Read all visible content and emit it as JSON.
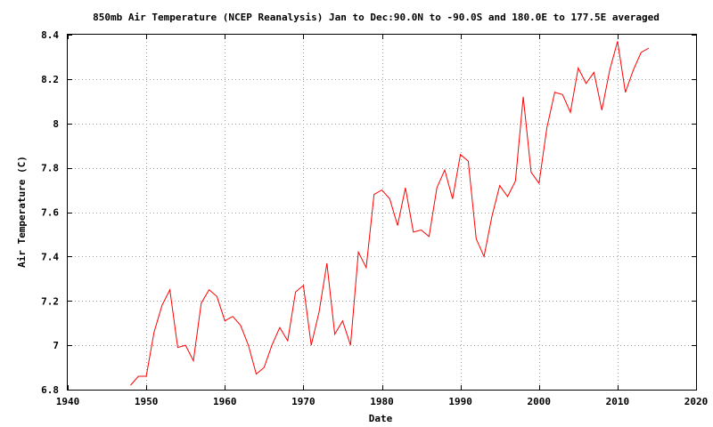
{
  "chart_data": {
    "type": "line",
    "title": "850mb Air Temperature (NCEP Reanalysis) Jan to Dec:90.0N to -90.0S and 180.0E to 177.5E averaged",
    "xlabel": "Date",
    "ylabel": "Air Temperature (C)",
    "xlim": [
      1940,
      2020
    ],
    "ylim": [
      6.8,
      8.4
    ],
    "xticks": [
      1940,
      1950,
      1960,
      1970,
      1980,
      1990,
      2000,
      2010,
      2020
    ],
    "yticks": [
      6.8,
      7,
      7.2,
      7.4,
      7.6,
      7.8,
      8,
      8.2,
      8.4
    ],
    "xtick_labels": [
      "1940",
      "1950",
      "1960",
      "1970",
      "1980",
      "1990",
      "2000",
      "2010",
      "2020"
    ],
    "ytick_labels": [
      "6.8",
      "7",
      "7.2",
      "7.4",
      "7.6",
      "7.8",
      "8",
      "8.2",
      "8.4"
    ],
    "grid": true,
    "color": "#ff0000",
    "series": [
      {
        "x": [
          1948,
          1949,
          1950,
          1951,
          1952,
          1953,
          1954,
          1955,
          1956,
          1957,
          1958,
          1959,
          1960,
          1961,
          1962,
          1963,
          1964,
          1965,
          1966,
          1967,
          1968,
          1969,
          1970,
          1971,
          1972,
          1973,
          1974,
          1975,
          1976,
          1977,
          1978,
          1979,
          1980,
          1981,
          1982,
          1983,
          1984,
          1985,
          1986,
          1987,
          1988,
          1989,
          1990,
          1991,
          1992,
          1993,
          1994,
          1995,
          1996,
          1997,
          1998,
          1999,
          2000,
          2001,
          2002,
          2003,
          2004,
          2005,
          2006,
          2007,
          2008,
          2009,
          2010,
          2011,
          2012,
          2013,
          2014
        ],
        "values": [
          6.82,
          6.86,
          6.86,
          7.06,
          7.18,
          7.25,
          6.99,
          7.0,
          6.93,
          7.19,
          7.25,
          7.22,
          7.11,
          7.13,
          7.09,
          7.0,
          6.87,
          6.9,
          7.0,
          7.08,
          7.02,
          7.24,
          7.27,
          7.0,
          7.15,
          7.37,
          7.05,
          7.11,
          7.0,
          7.42,
          7.35,
          7.68,
          7.7,
          7.66,
          7.54,
          7.71,
          7.51,
          7.52,
          7.49,
          7.71,
          7.79,
          7.66,
          7.86,
          7.83,
          7.48,
          7.4,
          7.58,
          7.72,
          7.67,
          7.74,
          8.12,
          7.78,
          7.73,
          7.98,
          8.14,
          8.13,
          8.05,
          8.25,
          8.18,
          8.23,
          8.06,
          8.24,
          8.37,
          8.14,
          8.24,
          8.32,
          8.34
        ]
      }
    ]
  }
}
